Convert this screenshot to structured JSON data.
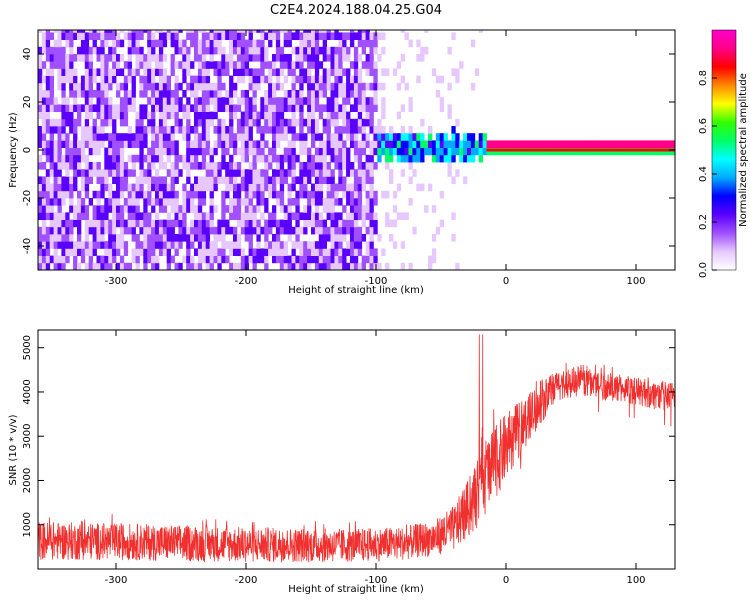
{
  "title": "C2E4.2024.188.04.25.G04",
  "chart_data": [
    {
      "type": "heatmap",
      "xlabel": "Height of straight line (km)",
      "ylabel": "Frequency (Hz)",
      "xlim": [
        -360,
        130
      ],
      "ylim": [
        -50,
        50
      ],
      "x_ticks": [
        -300,
        -200,
        -100,
        0,
        100
      ],
      "y_ticks": [
        -40,
        -20,
        0,
        20,
        40
      ],
      "colorbar": {
        "label": "Normalized spectral amplitude",
        "range": [
          0,
          1
        ],
        "ticks": [
          "0.0",
          "0.2",
          "0.4",
          "0.6",
          "0.8"
        ],
        "colors": [
          "#ffffff",
          "#e6c8ff",
          "#a050ff",
          "#5a00ff",
          "#0000ff",
          "#00aaff",
          "#00ffff",
          "#00ff66",
          "#33ff00",
          "#ffff00",
          "#ff8800",
          "#ff0000",
          "#ff0088",
          "#ff00cc"
        ]
      },
      "regions": [
        {
          "desc": "noise",
          "x_range": [
            -360,
            -100
          ],
          "y_range": [
            -50,
            50
          ],
          "level": 0.25
        },
        {
          "desc": "transition",
          "x_range": [
            -100,
            -15
          ],
          "y_center": 0,
          "y_halfwidth": 6,
          "level": 0.5
        },
        {
          "desc": "tone",
          "x_range": [
            -15,
            130
          ],
          "y_center": 0,
          "y_halfwidth": 1,
          "level": 0.95
        }
      ]
    },
    {
      "type": "line",
      "xlabel": "Height of straight line (km)",
      "ylabel": "SNR (10 * v/v)",
      "xlim": [
        -360,
        130
      ],
      "ylim": [
        0,
        5400
      ],
      "x_ticks": [
        -300,
        -200,
        -100,
        0,
        100
      ],
      "y_ticks": [
        1000,
        2000,
        3000,
        4000,
        5000
      ],
      "color": "#f0302e",
      "envelope": [
        {
          "x": -360,
          "low": 200,
          "high": 1300
        },
        {
          "x": -300,
          "low": 200,
          "high": 1250
        },
        {
          "x": -200,
          "low": 150,
          "high": 1150
        },
        {
          "x": -120,
          "low": 150,
          "high": 1100
        },
        {
          "x": -80,
          "low": 200,
          "high": 1150
        },
        {
          "x": -55,
          "low": 300,
          "high": 1300
        },
        {
          "x": -40,
          "low": 400,
          "high": 1700
        },
        {
          "x": -25,
          "low": 800,
          "high": 2600
        },
        {
          "x": -15,
          "low": 1200,
          "high": 3500
        },
        {
          "x": 0,
          "low": 2000,
          "high": 3900
        },
        {
          "x": 20,
          "low": 3000,
          "high": 4300
        },
        {
          "x": 40,
          "low": 3800,
          "high": 4700
        },
        {
          "x": 60,
          "low": 3900,
          "high": 4800
        },
        {
          "x": 80,
          "low": 3800,
          "high": 4600
        },
        {
          "x": 100,
          "low": 3700,
          "high": 4500
        },
        {
          "x": 130,
          "low": 3500,
          "high": 4400
        }
      ]
    }
  ]
}
